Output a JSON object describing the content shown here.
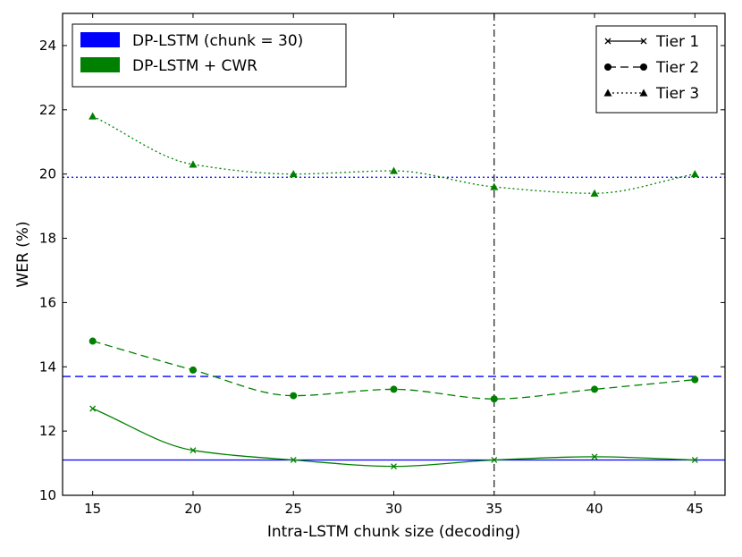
{
  "chart_data": {
    "type": "line",
    "title": "",
    "xlabel": "Intra-LSTM chunk size (decoding)",
    "ylabel": "WER (%)",
    "xlim": [
      13.5,
      46.5
    ],
    "ylim": [
      10,
      25
    ],
    "xticks": [
      15,
      20,
      25,
      30,
      35,
      40,
      45
    ],
    "yticks": [
      10,
      12,
      14,
      16,
      18,
      20,
      22,
      24
    ],
    "x": [
      15,
      20,
      25,
      30,
      35,
      40,
      45
    ],
    "vertical_line_x": 35,
    "baseline": {
      "name": "DP-LSTM (chunk = 30)",
      "color": "#0000ff",
      "values": {
        "tier1": 11.1,
        "tier2": 13.7,
        "tier3": 19.9
      }
    },
    "series": [
      {
        "name": "DP-LSTM + CWR",
        "tier": "tier1",
        "color": "#008000",
        "marker": "x",
        "dash": "solid",
        "values": [
          12.7,
          11.4,
          11.1,
          10.9,
          11.1,
          11.2,
          11.1
        ]
      },
      {
        "name": "DP-LSTM + CWR",
        "tier": "tier2",
        "color": "#008000",
        "marker": "circle",
        "dash": "dashed",
        "values": [
          14.8,
          13.9,
          13.1,
          13.3,
          13.0,
          13.3,
          13.6
        ]
      },
      {
        "name": "DP-LSTM + CWR",
        "tier": "tier3",
        "color": "#008000",
        "marker": "triangle",
        "dash": "dotted",
        "values": [
          21.8,
          20.3,
          20.0,
          20.1,
          19.6,
          19.4,
          20.0
        ]
      }
    ],
    "legend_color": {
      "position": "top-left",
      "entries": [
        {
          "label": "DP-LSTM (chunk = 30)",
          "color": "#0000ff"
        },
        {
          "label": "DP-LSTM + CWR",
          "color": "#008000"
        }
      ]
    },
    "legend_tier": {
      "position": "top-right",
      "entries": [
        {
          "label": "Tier 1",
          "marker": "x",
          "dash": "solid"
        },
        {
          "label": "Tier 2",
          "marker": "circle",
          "dash": "dashed"
        },
        {
          "label": "Tier 3",
          "marker": "triangle",
          "dash": "dotted"
        }
      ]
    }
  }
}
